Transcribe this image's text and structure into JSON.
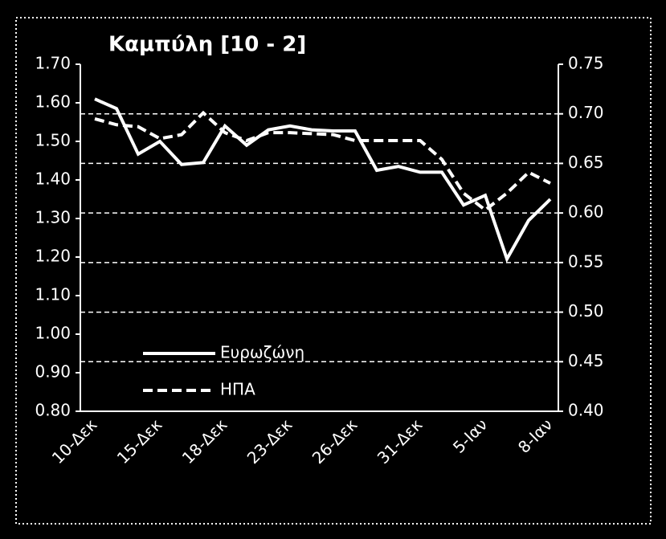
{
  "chart_data": {
    "type": "line",
    "title": "Καμπύλη [10 - 2]",
    "categories": [
      "10-Δεκ",
      null,
      null,
      "15-Δεκ",
      null,
      null,
      "18-Δεκ",
      null,
      null,
      "23-Δεκ",
      null,
      null,
      "26-Δεκ",
      null,
      null,
      "31-Δεκ",
      null,
      null,
      "5-Ιαν",
      null,
      null,
      "8-Ιαν"
    ],
    "series": [
      {
        "name": "Ευρωζώνη",
        "color": "#ffffff",
        "dash": false,
        "axis": "y",
        "values": [
          1.61,
          1.585,
          1.467,
          1.5,
          1.44,
          1.445,
          1.54,
          1.49,
          1.53,
          1.54,
          1.53,
          1.527,
          1.527,
          1.425,
          1.435,
          1.42,
          1.42,
          1.335,
          1.36,
          1.195,
          1.295,
          1.35
        ]
      },
      {
        "name": "ΗΠΑ",
        "color": "#ffffff",
        "dash": true,
        "axis": "y2",
        "values": [
          0.695,
          0.689,
          0.687,
          0.675,
          0.679,
          0.701,
          0.681,
          0.673,
          0.681,
          0.681,
          0.68,
          0.679,
          0.673,
          0.673,
          0.673,
          0.673,
          0.654,
          0.62,
          0.603,
          0.62,
          0.641,
          0.63
        ]
      }
    ],
    "ylim": [
      0.8,
      1.7
    ],
    "yticks": [
      {
        "value": 0.8,
        "label": "0.80"
      },
      {
        "value": 0.9,
        "label": "0.90"
      },
      {
        "value": 1.0,
        "label": "1.00"
      },
      {
        "value": 1.1,
        "label": "1.10"
      },
      {
        "value": 1.2,
        "label": "1.20"
      },
      {
        "value": 1.3,
        "label": "1.30"
      },
      {
        "value": 1.4,
        "label": "1.40"
      },
      {
        "value": 1.5,
        "label": "1.50"
      },
      {
        "value": 1.6,
        "label": "1.60"
      },
      {
        "value": 1.7,
        "label": "1.70"
      }
    ],
    "y2lim": [
      0.4,
      0.75
    ],
    "y2ticks": [
      {
        "value": 0.4,
        "label": "0.40"
      },
      0.45,
      {
        "value": 0.5,
        "label": "0.50"
      },
      0.55,
      {
        "value": 0.6,
        "label": "0.60"
      },
      0.65,
      {
        "value": 0.7,
        "label": "0.70"
      },
      0.75
    ],
    "grid": "y2"
  }
}
